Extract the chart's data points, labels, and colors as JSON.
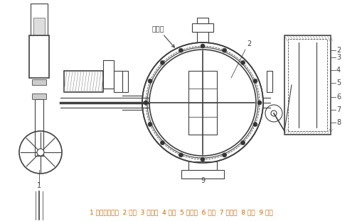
{
  "title": "",
  "annotation_blowhole": "吹扫口",
  "label_text": "1 液压执行机构  2 阀杆  3 调节杆  4 套杆  5 拨动杆  6 边杆  7 固定爪  8 蝶板  9 阀体",
  "label_color": "#cc6600",
  "bg_color": "#ffffff",
  "line_color": "#404040",
  "line_width": 0.8,
  "fig_width": 5.1,
  "fig_height": 3.12,
  "dpi": 100
}
